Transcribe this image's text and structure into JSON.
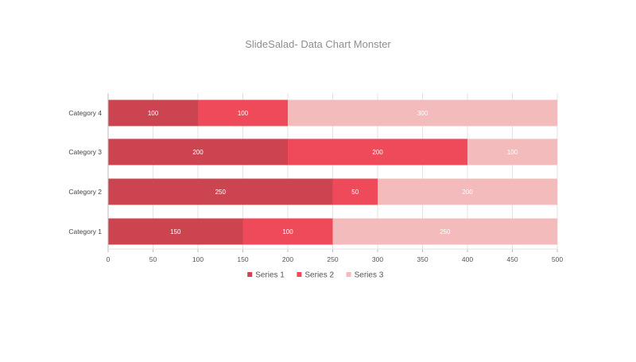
{
  "chart_data": {
    "type": "bar",
    "orientation": "horizontal",
    "stacked": true,
    "title": "SlideSalad-  Data Chart Monster",
    "categories": [
      "Category 1",
      "Category 2",
      "Category 3",
      "Category 4"
    ],
    "series": [
      {
        "name": "Series 1",
        "values": [
          150,
          250,
          200,
          100
        ],
        "color": "#cd4451"
      },
      {
        "name": "Series 2",
        "values": [
          100,
          50,
          200,
          100
        ],
        "color": "#ee4a5a"
      },
      {
        "name": "Series 3",
        "values": [
          250,
          200,
          100,
          300
        ],
        "color": "#f4bbbd"
      }
    ],
    "xlim": [
      0,
      500
    ],
    "xticks": [
      "0",
      "50",
      "100",
      "150",
      "200",
      "250",
      "300",
      "350",
      "400",
      "450",
      "500"
    ],
    "grid": true,
    "legend_position": "bottom",
    "data_labels": true
  }
}
